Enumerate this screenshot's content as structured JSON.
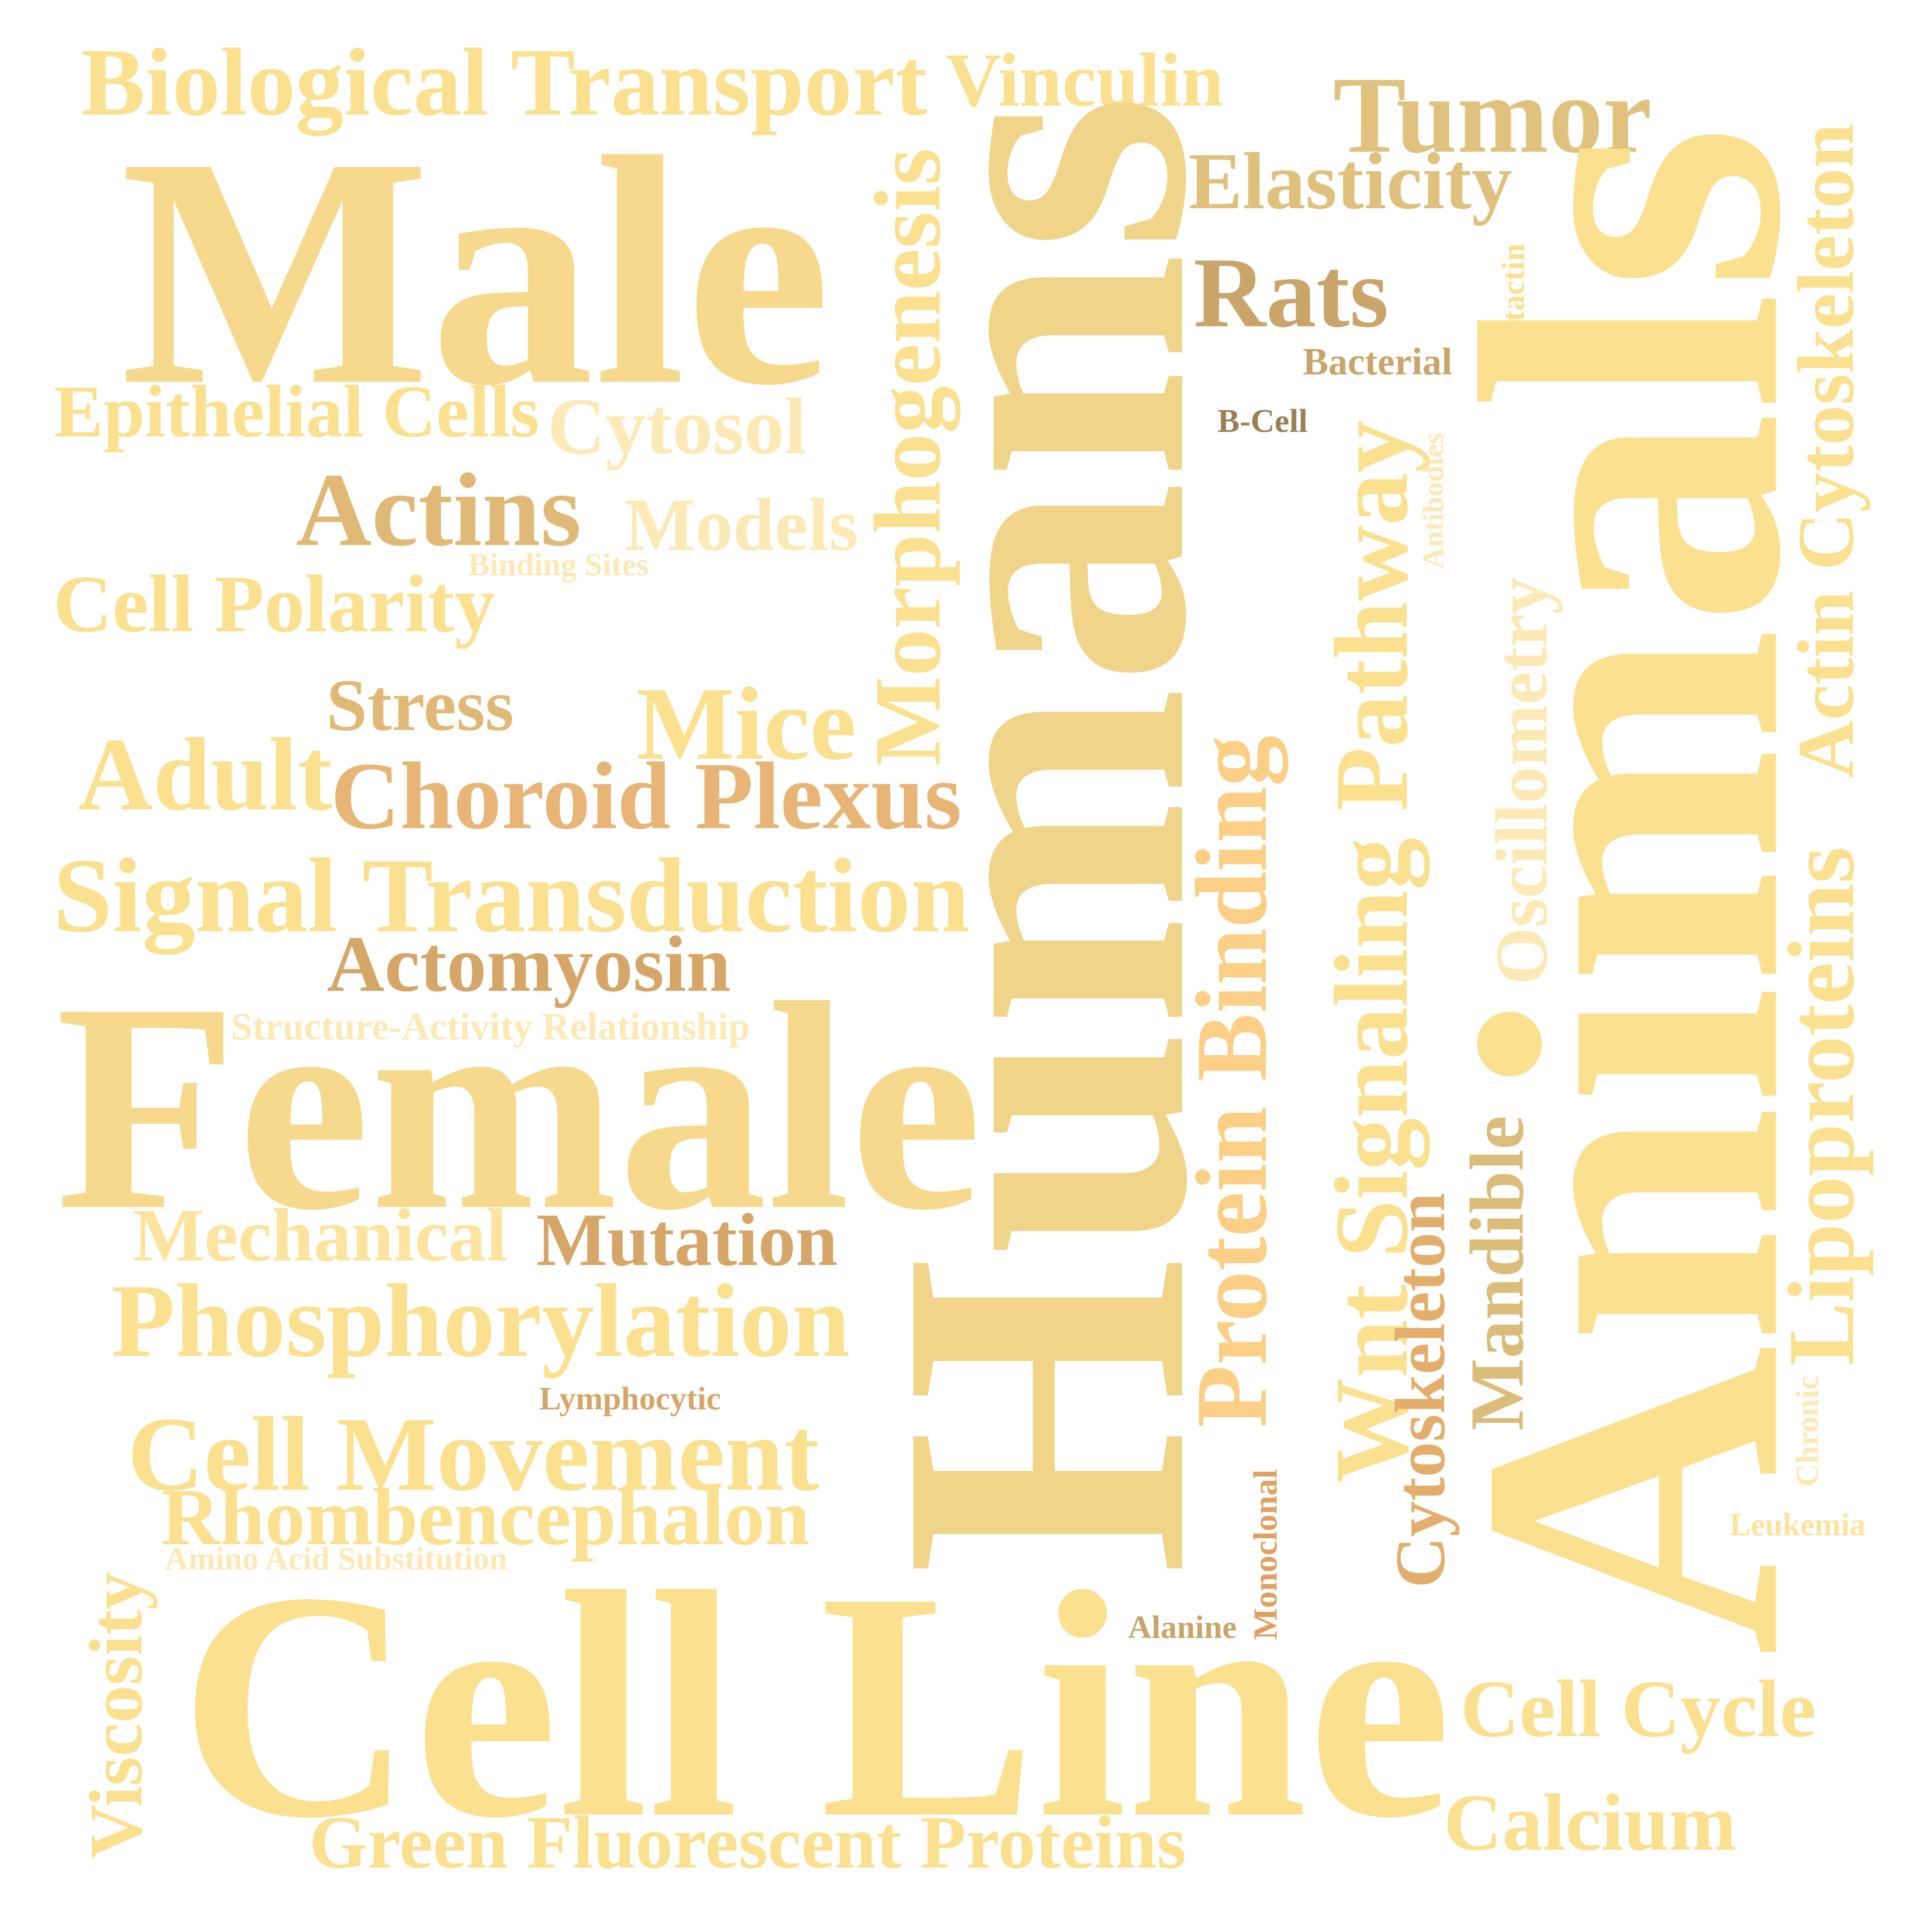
{
  "words": [
    {
      "text": "Biological Transport",
      "color": "#fbe08f"
    },
    {
      "text": "Vinculin",
      "color": "#fbe08f"
    },
    {
      "text": "Tumor",
      "color": "#e0c27e"
    },
    {
      "text": "Male",
      "color": "#f7d98d"
    },
    {
      "text": "Elasticity",
      "color": "#dfc17d"
    },
    {
      "text": "Rats",
      "color": "#c9a56b"
    },
    {
      "text": "Bacterial",
      "color": "#c9a56b"
    },
    {
      "text": "Cortactin",
      "color": "#fbe08f"
    },
    {
      "text": "B-Cell",
      "color": "#9b7f55"
    },
    {
      "text": "Epithelial Cells",
      "color": "#fbe08f"
    },
    {
      "text": "Cytosol",
      "color": "#fde9b5"
    },
    {
      "text": "Actins",
      "color": "#e0b977"
    },
    {
      "text": "Models",
      "color": "#fde9b5"
    },
    {
      "text": "Binding Sites",
      "color": "#fde9b5"
    },
    {
      "text": "Cell Polarity",
      "color": "#fbe08f"
    },
    {
      "text": "Stress",
      "color": "#e0b977"
    },
    {
      "text": "Mice",
      "color": "#fbe08f"
    },
    {
      "text": "Adult",
      "color": "#fbe08f"
    },
    {
      "text": "Choroid Plexus",
      "color": "#e8b577"
    },
    {
      "text": "Signal Transduction",
      "color": "#fbe08f"
    },
    {
      "text": "Actomyosin",
      "color": "#d6a568"
    },
    {
      "text": "Structure-Activity Relationship",
      "color": "#fde9b5"
    },
    {
      "text": "Female",
      "color": "#f7d98d"
    },
    {
      "text": "Mechanical",
      "color": "#fde49e"
    },
    {
      "text": "Mutation",
      "color": "#d6a568"
    },
    {
      "text": "Phosphorylation",
      "color": "#fbe08f"
    },
    {
      "text": "Lymphocytic",
      "color": "#d6a568"
    },
    {
      "text": "Cell Movement",
      "color": "#fbe08f"
    },
    {
      "text": "Rhombencephalon",
      "color": "#fbe08f"
    },
    {
      "text": "Amino Acid Substitution",
      "color": "#fde9b5"
    },
    {
      "text": "Viscosity",
      "color": "#fbe08f"
    },
    {
      "text": "Cell Line",
      "color": "#fbe08f"
    },
    {
      "text": "Green Fluorescent Proteins",
      "color": "#fbe08f"
    },
    {
      "text": "Alanine",
      "color": "#c9a56b"
    },
    {
      "text": "Monoclonal",
      "color": "#e0a060"
    },
    {
      "text": "Humans",
      "color": "#f0d48a"
    },
    {
      "text": "Morphogenesis",
      "color": "#fbe08f"
    },
    {
      "text": "Protein Binding",
      "color": "#fbcf85"
    },
    {
      "text": "Wnt Signaling Pathway",
      "color": "#fbe08f"
    },
    {
      "text": "Antibodies",
      "color": "#fde9b5"
    },
    {
      "text": "Oscillometry",
      "color": "#fde9b5"
    },
    {
      "text": "Cytoskeleton",
      "color": "#e3ae6c"
    },
    {
      "text": "Mandible",
      "color": "#dcbc7a"
    },
    {
      "text": "Animals",
      "color": "#fbe08f"
    },
    {
      "text": "Actin Cytoskeleton",
      "color": "#fbe08f"
    },
    {
      "text": "Lipoproteins",
      "color": "#fbe08f"
    },
    {
      "text": "Chronic",
      "color": "#fde9b5"
    },
    {
      "text": "Leukemia",
      "color": "#fde49e"
    },
    {
      "text": "Cell Cycle",
      "color": "#fbe08f"
    },
    {
      "text": "Calcium",
      "color": "#fbe08f"
    }
  ]
}
